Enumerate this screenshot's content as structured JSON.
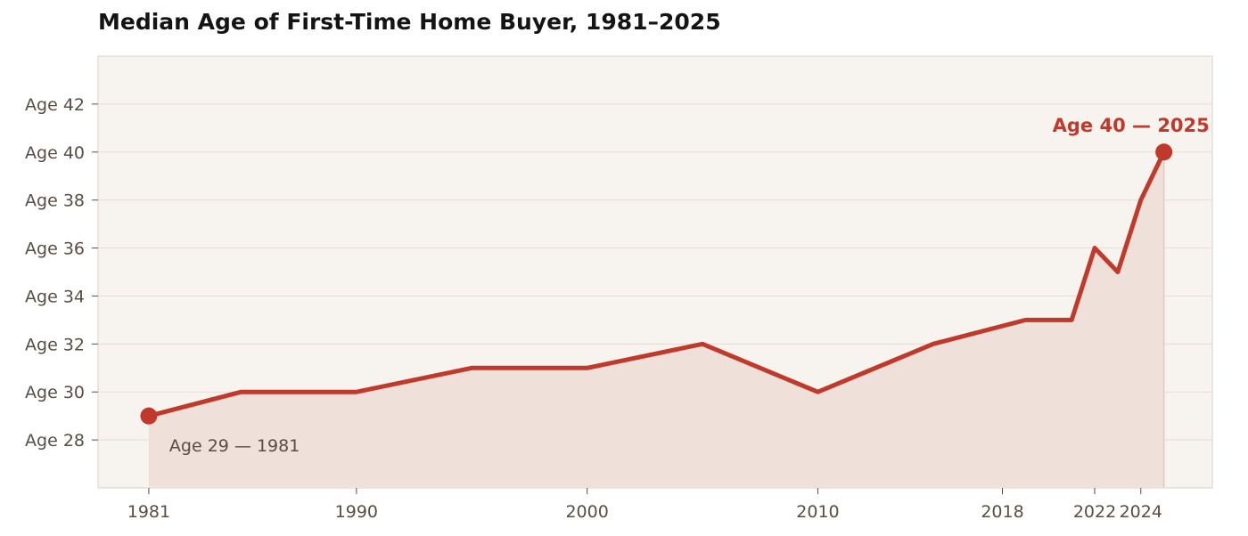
{
  "chart_data": {
    "type": "line",
    "title": "Median Age of First-Time Home Buyer, 1981–2025",
    "xlabel": "",
    "ylabel": "",
    "x": [
      1981,
      1985,
      1990,
      1995,
      2000,
      2005,
      2010,
      2015,
      2019,
      2021,
      2022,
      2023,
      2024,
      2025
    ],
    "series": [
      {
        "values": [
          29,
          30,
          30,
          31,
          31,
          32,
          30,
          32,
          33,
          33,
          36,
          35,
          38,
          40
        ]
      }
    ],
    "x_ticks": [
      1981,
      1990,
      2000,
      2010,
      2018,
      2022,
      2024
    ],
    "x_tick_labels": [
      "1981",
      "1990",
      "2000",
      "2010",
      "2018",
      "2022",
      "2024"
    ],
    "y_ticks": [
      28,
      30,
      32,
      34,
      36,
      38,
      40,
      42
    ],
    "y_tick_labels": [
      "Age 28",
      "Age 30",
      "Age 32",
      "Age 34",
      "Age 36",
      "Age 38",
      "Age 40",
      "Age 42"
    ],
    "xlim": [
      1978.8,
      2027.1
    ],
    "ylim": [
      26.0,
      44.0
    ],
    "grid": "horizontal",
    "annotations": {
      "start": "Age 29 — 1981",
      "end": "Age 40 — 2025"
    },
    "colors": {
      "line": "#c0392b",
      "fill": "#efe0da",
      "plot_background": "#f7f3ee",
      "frame": "#ddd2c8",
      "grid": "#e6ddd5",
      "tick_text": "#5a4d44",
      "title_text": "#141414"
    }
  }
}
